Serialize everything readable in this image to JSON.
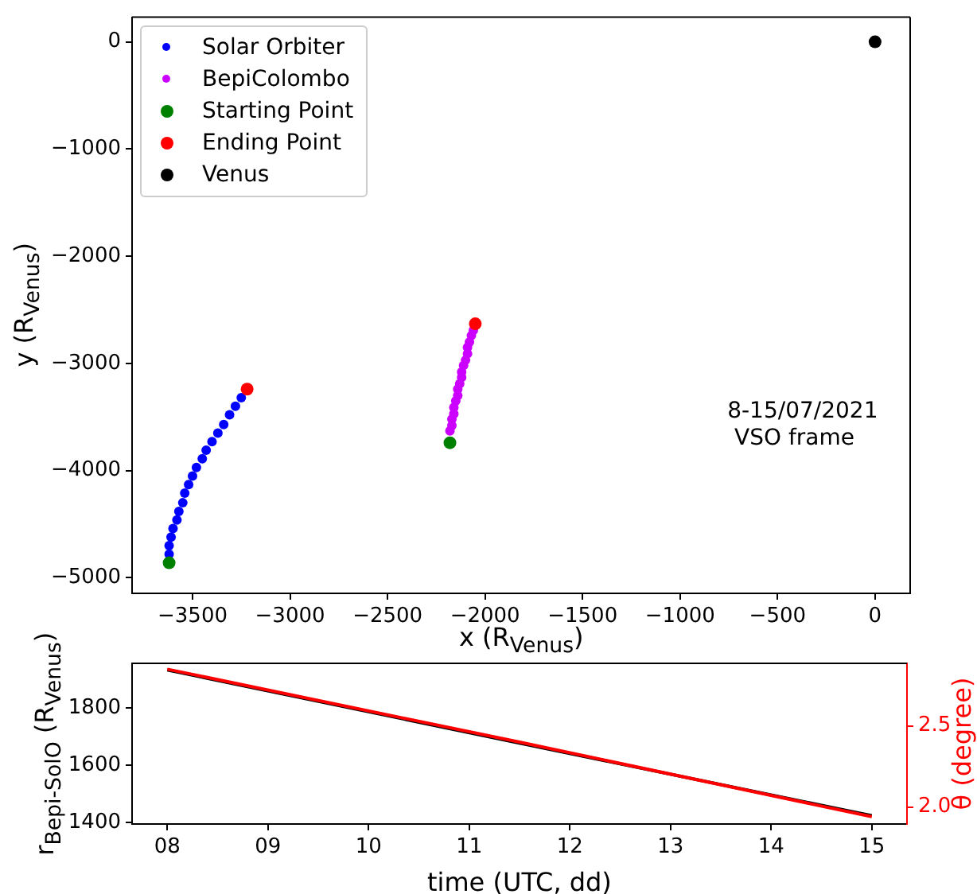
{
  "chart_data": [
    {
      "type": "scatter",
      "xlabel": "x (R$_{Venus}$)",
      "ylabel": "y (R$_{Venus}$)",
      "legend": "top left",
      "marker": "circle",
      "grid": false,
      "xlim": [
        -3810,
        180
      ],
      "ylim": [
        -5145,
        230
      ],
      "xticks": [
        -3500,
        -3000,
        -2500,
        -2000,
        -1500,
        -1000,
        -500,
        0
      ],
      "yticks": [
        -5000,
        -4000,
        -3000,
        -2000,
        -1000,
        0
      ],
      "annotations": [
        "8-15/07/2021",
        " VSO frame"
      ],
      "series": [
        {
          "name": "Solar Orbiter",
          "color": "#0000ff",
          "x": [
            -3620,
            -3620,
            -3610,
            -3600,
            -3580,
            -3570,
            -3550,
            -3540,
            -3520,
            -3500,
            -3480,
            -3450,
            -3430,
            -3400,
            -3370,
            -3340,
            -3310,
            -3280,
            -3250
          ],
          "values": [
            -4780,
            -4700,
            -4620,
            -4540,
            -4460,
            -4380,
            -4300,
            -4210,
            -4130,
            -4050,
            -3970,
            -3890,
            -3810,
            -3730,
            -3650,
            -3570,
            -3480,
            -3400,
            -3320
          ]
        },
        {
          "name": "BepiColombo",
          "color": "#cc00ff",
          "x": [
            -2180,
            -2170,
            -2170,
            -2160,
            -2160,
            -2150,
            -2140,
            -2140,
            -2130,
            -2120,
            -2120,
            -2110,
            -2100,
            -2090,
            -2090,
            -2080,
            -2070,
            -2060
          ],
          "values": [
            -3630,
            -3580,
            -3520,
            -3470,
            -3410,
            -3350,
            -3300,
            -3240,
            -3190,
            -3130,
            -3080,
            -3020,
            -2970,
            -2910,
            -2850,
            -2800,
            -2740,
            -2690
          ]
        },
        {
          "name": "Starting Point",
          "color": "#008000",
          "x": [
            -3620,
            -2180
          ],
          "values": [
            -4860,
            -3740
          ]
        },
        {
          "name": "Ending Point",
          "color": "#ff0000",
          "x": [
            -3220,
            -2050
          ],
          "values": [
            -3240,
            -2630
          ]
        },
        {
          "name": "Venus",
          "color": "#000000",
          "x": [
            0
          ],
          "values": [
            0
          ]
        }
      ]
    },
    {
      "type": "line",
      "xlabel": "time (UTC, dd)",
      "ylabel": "r$_{Bepi-SolO}$ (R$_{Venus}$)",
      "y2label": "θ (degree)",
      "marker": "none",
      "grid": false,
      "xlim": [
        7.65,
        15.35
      ],
      "ylim": [
        1395,
        1955
      ],
      "y2lim": [
        1.895,
        2.886
      ],
      "xticks": [
        {
          "value": 8,
          "label": "08"
        },
        {
          "value": 9,
          "label": "09"
        },
        10,
        11,
        12,
        13,
        14,
        15
      ],
      "yticks": [
        1400,
        1600,
        1800
      ],
      "y2ticks": [
        {
          "value": 2,
          "label": "2.0"
        },
        2.5
      ],
      "series": [
        {
          "color": "#000000",
          "x": [
            8,
            11.5,
            15
          ],
          "values": [
            1932,
            1677,
            1424
          ]
        },
        {
          "color": "#ff0000",
          "axis": "y2",
          "x": [
            8,
            11.5,
            15
          ],
          "values": [
            2.85,
            2.4,
            1.94
          ]
        }
      ]
    }
  ]
}
